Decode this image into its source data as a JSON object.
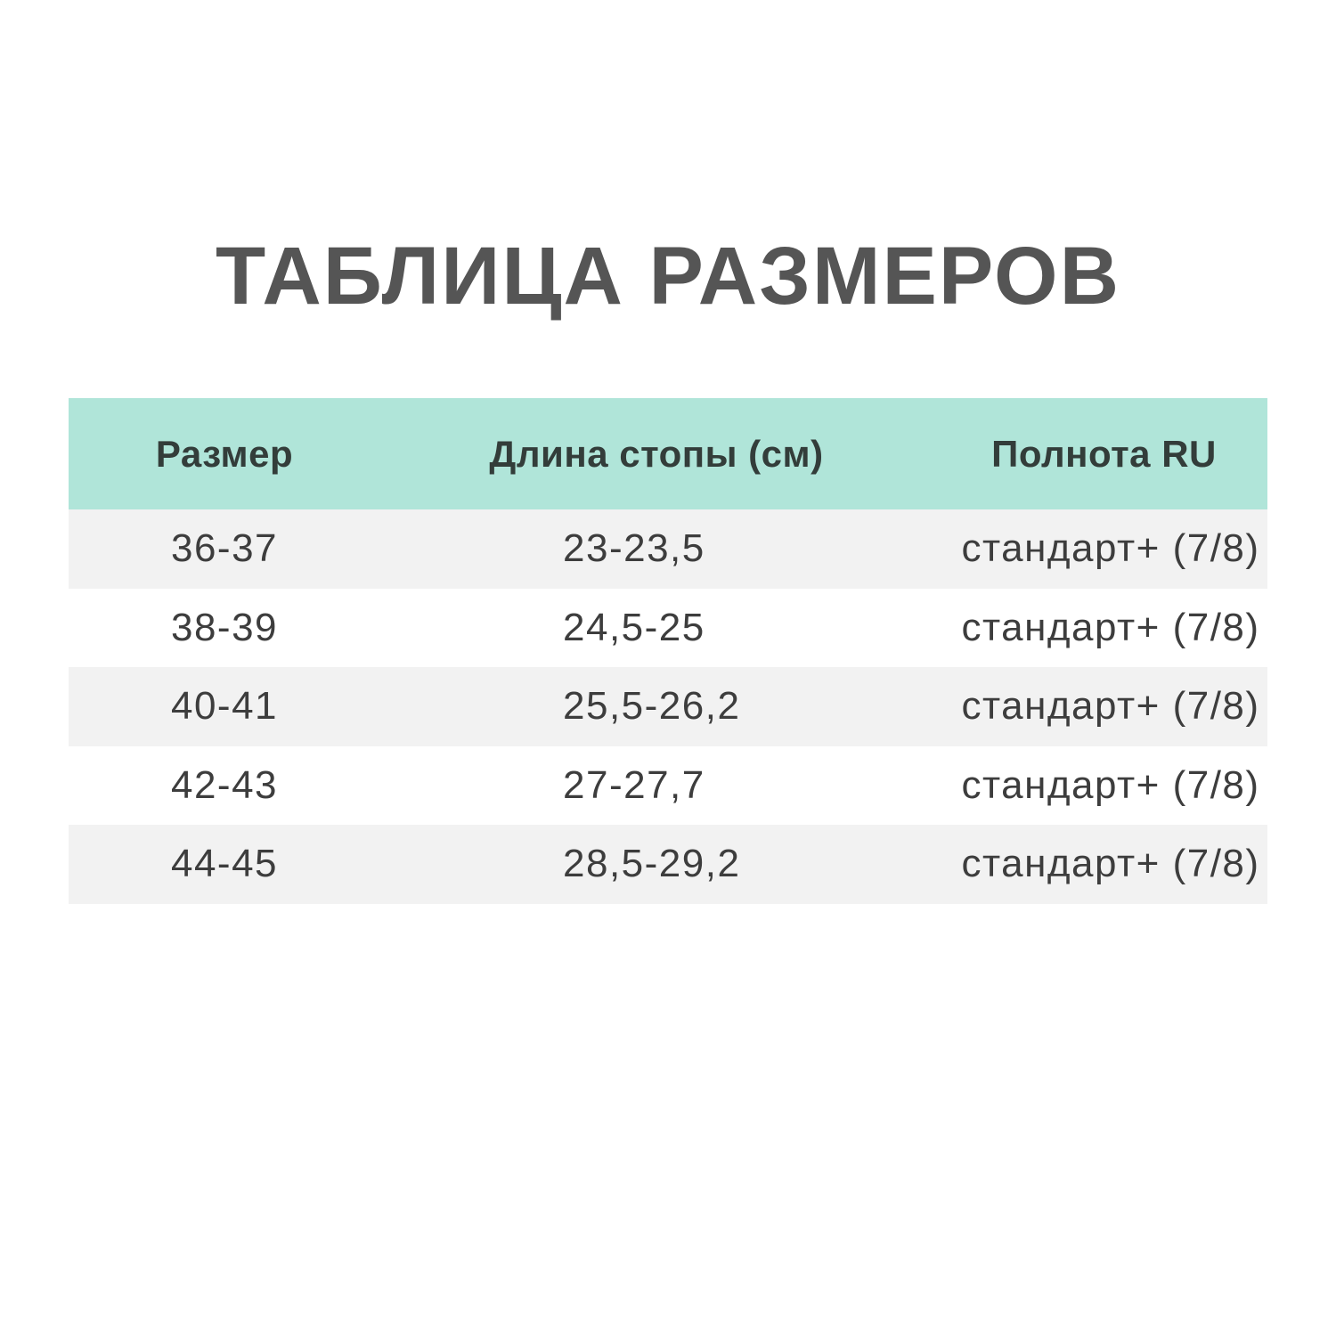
{
  "title": "ТАБЛИЦА РАЗМЕРОВ",
  "colors": {
    "header_bg": "#b0e5d9",
    "stripe_bg": "#f2f2f2",
    "text": "#3d3d3d"
  },
  "table": {
    "headers": [
      "Размер",
      "Длина стопы (см)",
      "Полнота RU"
    ],
    "rows": [
      [
        "36-37",
        "23-23,5",
        "стандарт+ (7/8)"
      ],
      [
        "38-39",
        "24,5-25",
        "стандарт+ (7/8)"
      ],
      [
        "40-41",
        "25,5-26,2",
        "стандарт+ (7/8)"
      ],
      [
        "42-43",
        "27-27,7",
        "стандарт+ (7/8)"
      ],
      [
        "44-45",
        "28,5-29,2",
        "стандарт+ (7/8)"
      ]
    ]
  }
}
